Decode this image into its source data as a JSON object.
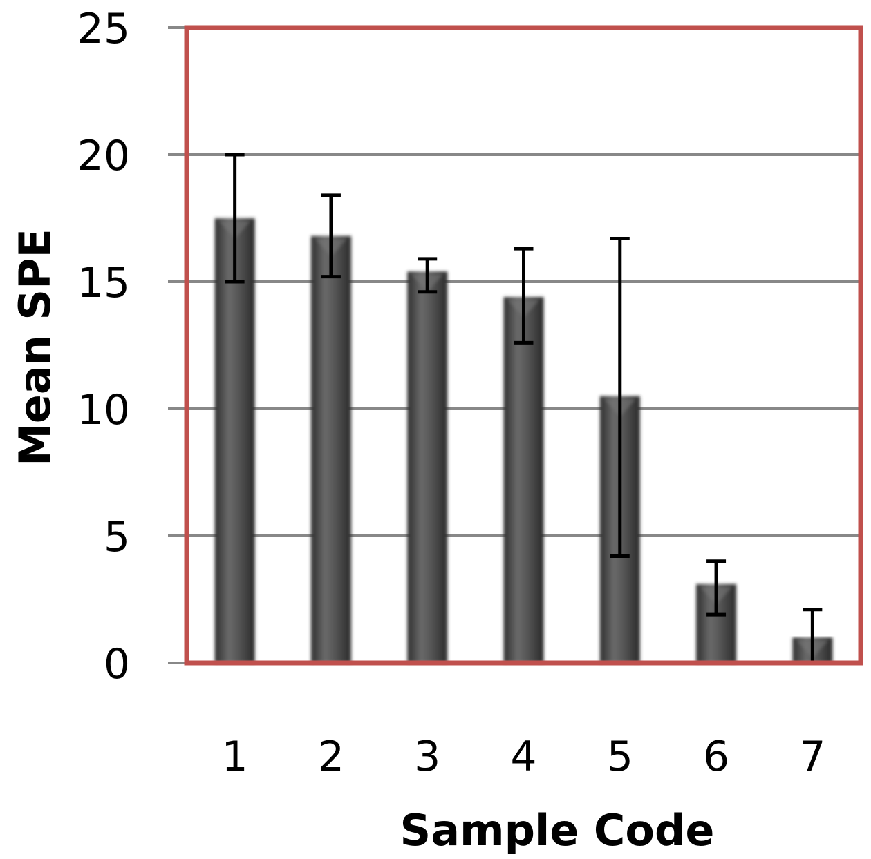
{
  "chart_data": {
    "type": "bar",
    "title": "",
    "xlabel": "Sample Code",
    "ylabel": "Mean  SPE",
    "categories": [
      "1",
      "2",
      "3",
      "4",
      "5",
      "6",
      "7"
    ],
    "values": [
      17.5,
      16.8,
      15.4,
      14.4,
      10.5,
      3.1,
      1.0
    ],
    "error_bars": [
      {
        "low": 15.0,
        "high": 20.0
      },
      {
        "low": 15.2,
        "high": 18.4
      },
      {
        "low": 14.6,
        "high": 15.9
      },
      {
        "low": 12.6,
        "high": 16.3
      },
      {
        "low": 4.2,
        "high": 16.7
      },
      {
        "low": 1.9,
        "high": 4.0
      },
      {
        "low": 0.0,
        "high": 2.1
      }
    ],
    "ylim": [
      0,
      25
    ],
    "yticks": [
      "0",
      "5",
      "10",
      "15",
      "20",
      "25"
    ],
    "grid": true,
    "legend": "none",
    "colors": {
      "bar": "#4a4a4a",
      "bar_highlight": "#7a7a7a",
      "plot_border": "#c0504d",
      "gridline": "#888888",
      "error_bar": "#000000"
    }
  }
}
